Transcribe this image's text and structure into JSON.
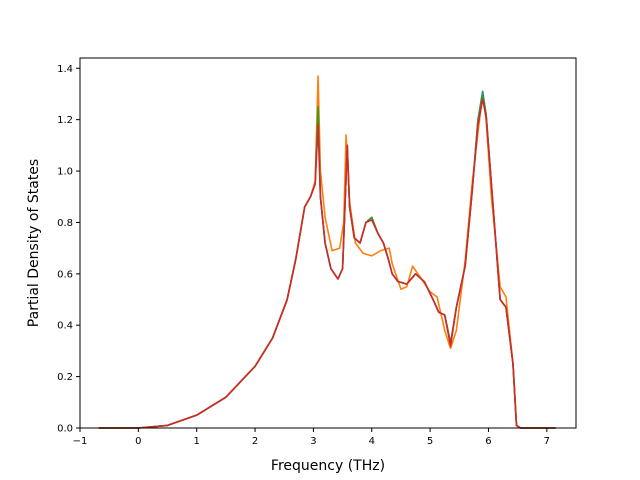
{
  "chart_data": {
    "type": "line",
    "title": "",
    "xlabel": "Frequency (THz)",
    "ylabel": "Partial Density of States",
    "xlim": [
      -1.0,
      7.5
    ],
    "ylim": [
      0.0,
      1.44
    ],
    "x_ticks": [
      -1,
      0,
      1,
      2,
      3,
      4,
      5,
      6,
      7
    ],
    "y_ticks": [
      0.0,
      0.2,
      0.4,
      0.6,
      0.8,
      1.0,
      1.2,
      1.4
    ],
    "x_tick_labels": [
      "−1",
      "0",
      "1",
      "2",
      "3",
      "4",
      "5",
      "6",
      "7"
    ],
    "y_tick_labels": [
      "0.0",
      "0.2",
      "0.4",
      "0.6",
      "0.8",
      "1.0",
      "1.2",
      "1.4"
    ],
    "grid": false,
    "legend": "none",
    "series": [
      {
        "color": "#1f77b4",
        "points": [
          [
            -0.68,
            0
          ],
          [
            0,
            0
          ],
          [
            0.5,
            0.01
          ],
          [
            1,
            0.05
          ],
          [
            1.5,
            0.12
          ],
          [
            2,
            0.24
          ],
          [
            2.3,
            0.35
          ],
          [
            2.55,
            0.5
          ],
          [
            2.7,
            0.66
          ],
          [
            2.85,
            0.86
          ],
          [
            2.95,
            0.9
          ],
          [
            3.03,
            0.95
          ],
          [
            3.08,
            1.3
          ],
          [
            3.12,
            0.9
          ],
          [
            3.2,
            0.72
          ],
          [
            3.3,
            0.62
          ],
          [
            3.42,
            0.58
          ],
          [
            3.5,
            0.62
          ],
          [
            3.58,
            1.1
          ],
          [
            3.62,
            0.86
          ],
          [
            3.7,
            0.74
          ],
          [
            3.8,
            0.72
          ],
          [
            3.9,
            0.8
          ],
          [
            4.0,
            0.82
          ],
          [
            4.1,
            0.76
          ],
          [
            4.2,
            0.72
          ],
          [
            4.28,
            0.66
          ],
          [
            4.35,
            0.6
          ],
          [
            4.45,
            0.57
          ],
          [
            4.6,
            0.56
          ],
          [
            4.75,
            0.6
          ],
          [
            4.9,
            0.57
          ],
          [
            5.05,
            0.5
          ],
          [
            5.15,
            0.45
          ],
          [
            5.25,
            0.44
          ],
          [
            5.35,
            0.33
          ],
          [
            5.45,
            0.47
          ],
          [
            5.6,
            0.63
          ],
          [
            5.72,
            0.92
          ],
          [
            5.82,
            1.2
          ],
          [
            5.9,
            1.31
          ],
          [
            5.96,
            1.22
          ],
          [
            6.05,
            0.95
          ],
          [
            6.2,
            0.5
          ],
          [
            6.3,
            0.47
          ],
          [
            6.42,
            0.25
          ],
          [
            6.48,
            0.01
          ],
          [
            6.55,
            0
          ],
          [
            7.15,
            0
          ]
        ]
      },
      {
        "color": "#ff7f0e",
        "points": [
          [
            -0.68,
            0
          ],
          [
            0,
            0
          ],
          [
            0.5,
            0.01
          ],
          [
            1,
            0.05
          ],
          [
            1.5,
            0.12
          ],
          [
            2,
            0.24
          ],
          [
            2.3,
            0.35
          ],
          [
            2.55,
            0.5
          ],
          [
            2.7,
            0.66
          ],
          [
            2.85,
            0.86
          ],
          [
            2.95,
            0.9
          ],
          [
            3.03,
            0.96
          ],
          [
            3.08,
            1.37
          ],
          [
            3.12,
            1.0
          ],
          [
            3.2,
            0.82
          ],
          [
            3.32,
            0.69
          ],
          [
            3.45,
            0.7
          ],
          [
            3.52,
            0.8
          ],
          [
            3.56,
            1.14
          ],
          [
            3.62,
            0.88
          ],
          [
            3.72,
            0.72
          ],
          [
            3.85,
            0.68
          ],
          [
            4.0,
            0.67
          ],
          [
            4.15,
            0.69
          ],
          [
            4.3,
            0.7
          ],
          [
            4.35,
            0.64
          ],
          [
            4.5,
            0.54
          ],
          [
            4.6,
            0.55
          ],
          [
            4.7,
            0.63
          ],
          [
            4.85,
            0.58
          ],
          [
            5.0,
            0.53
          ],
          [
            5.12,
            0.51
          ],
          [
            5.25,
            0.38
          ],
          [
            5.35,
            0.31
          ],
          [
            5.45,
            0.38
          ],
          [
            5.6,
            0.65
          ],
          [
            5.72,
            0.95
          ],
          [
            5.82,
            1.15
          ],
          [
            5.9,
            1.3
          ],
          [
            5.96,
            1.2
          ],
          [
            6.05,
            0.9
          ],
          [
            6.2,
            0.55
          ],
          [
            6.3,
            0.51
          ],
          [
            6.42,
            0.25
          ],
          [
            6.48,
            0.01
          ],
          [
            6.55,
            0
          ],
          [
            7.15,
            0
          ]
        ]
      },
      {
        "color": "#2ca02c",
        "points": [
          [
            -0.68,
            0
          ],
          [
            0,
            0
          ],
          [
            0.5,
            0.01
          ],
          [
            1,
            0.05
          ],
          [
            1.5,
            0.12
          ],
          [
            2,
            0.24
          ],
          [
            2.3,
            0.35
          ],
          [
            2.55,
            0.5
          ],
          [
            2.7,
            0.66
          ],
          [
            2.85,
            0.86
          ],
          [
            2.95,
            0.9
          ],
          [
            3.03,
            0.95
          ],
          [
            3.08,
            1.25
          ],
          [
            3.12,
            0.9
          ],
          [
            3.2,
            0.72
          ],
          [
            3.3,
            0.62
          ],
          [
            3.42,
            0.58
          ],
          [
            3.5,
            0.62
          ],
          [
            3.58,
            1.1
          ],
          [
            3.62,
            0.86
          ],
          [
            3.7,
            0.74
          ],
          [
            3.8,
            0.72
          ],
          [
            3.9,
            0.8
          ],
          [
            4.0,
            0.82
          ],
          [
            4.1,
            0.76
          ],
          [
            4.2,
            0.72
          ],
          [
            4.28,
            0.66
          ],
          [
            4.35,
            0.6
          ],
          [
            4.45,
            0.57
          ],
          [
            4.6,
            0.56
          ],
          [
            4.75,
            0.6
          ],
          [
            4.9,
            0.57
          ],
          [
            5.05,
            0.5
          ],
          [
            5.15,
            0.45
          ],
          [
            5.25,
            0.44
          ],
          [
            5.35,
            0.33
          ],
          [
            5.45,
            0.47
          ],
          [
            5.6,
            0.63
          ],
          [
            5.72,
            0.92
          ],
          [
            5.82,
            1.2
          ],
          [
            5.9,
            1.3
          ],
          [
            5.96,
            1.22
          ],
          [
            6.05,
            0.95
          ],
          [
            6.2,
            0.5
          ],
          [
            6.3,
            0.47
          ],
          [
            6.42,
            0.25
          ],
          [
            6.48,
            0.01
          ],
          [
            6.55,
            0
          ],
          [
            7.15,
            0
          ]
        ]
      },
      {
        "color": "#d62728",
        "points": [
          [
            -0.68,
            0
          ],
          [
            0,
            0
          ],
          [
            0.5,
            0.01
          ],
          [
            1,
            0.05
          ],
          [
            1.5,
            0.12
          ],
          [
            2,
            0.24
          ],
          [
            2.3,
            0.35
          ],
          [
            2.55,
            0.5
          ],
          [
            2.7,
            0.66
          ],
          [
            2.85,
            0.86
          ],
          [
            2.95,
            0.9
          ],
          [
            3.03,
            0.95
          ],
          [
            3.08,
            1.18
          ],
          [
            3.12,
            0.9
          ],
          [
            3.2,
            0.72
          ],
          [
            3.3,
            0.62
          ],
          [
            3.42,
            0.58
          ],
          [
            3.5,
            0.62
          ],
          [
            3.58,
            1.1
          ],
          [
            3.62,
            0.86
          ],
          [
            3.7,
            0.74
          ],
          [
            3.8,
            0.72
          ],
          [
            3.9,
            0.8
          ],
          [
            4.0,
            0.81
          ],
          [
            4.1,
            0.76
          ],
          [
            4.2,
            0.72
          ],
          [
            4.28,
            0.66
          ],
          [
            4.35,
            0.6
          ],
          [
            4.45,
            0.57
          ],
          [
            4.6,
            0.56
          ],
          [
            4.75,
            0.6
          ],
          [
            4.9,
            0.57
          ],
          [
            5.05,
            0.5
          ],
          [
            5.15,
            0.45
          ],
          [
            5.25,
            0.44
          ],
          [
            5.35,
            0.32
          ],
          [
            5.45,
            0.47
          ],
          [
            5.6,
            0.63
          ],
          [
            5.72,
            0.92
          ],
          [
            5.82,
            1.18
          ],
          [
            5.9,
            1.28
          ],
          [
            5.96,
            1.21
          ],
          [
            6.05,
            0.95
          ],
          [
            6.2,
            0.5
          ],
          [
            6.3,
            0.47
          ],
          [
            6.42,
            0.25
          ],
          [
            6.48,
            0.01
          ],
          [
            6.55,
            0
          ],
          [
            7.15,
            0
          ]
        ]
      }
    ]
  }
}
